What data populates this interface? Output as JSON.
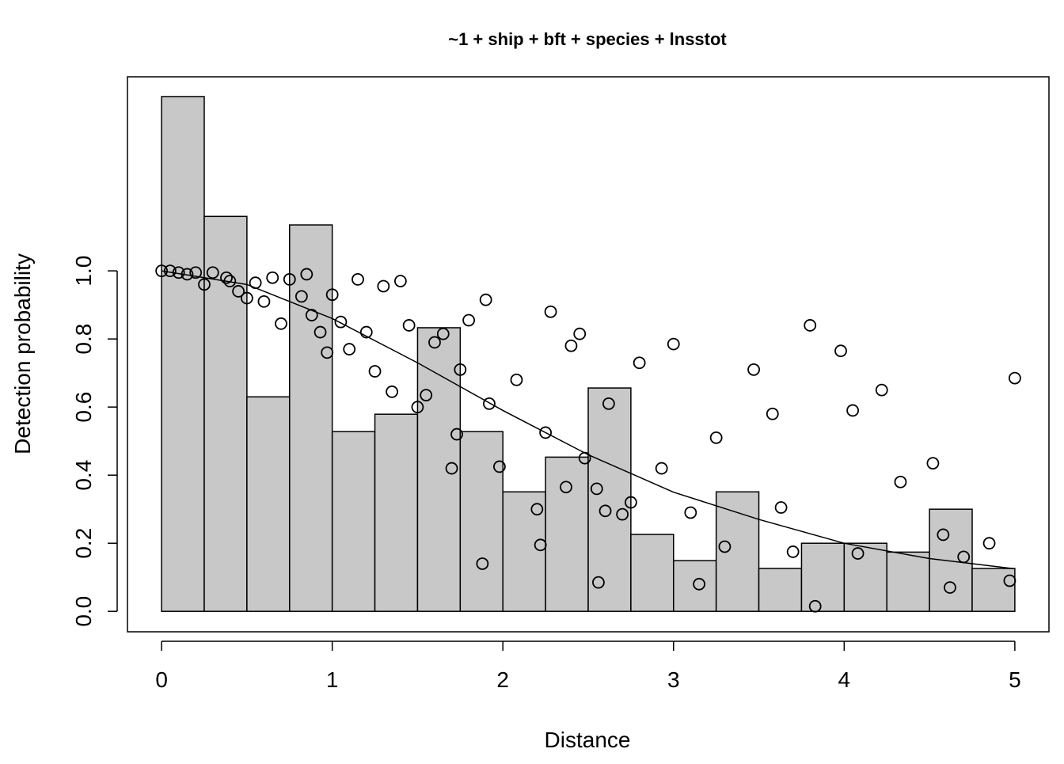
{
  "chart_data": {
    "type": "histogram",
    "title": "~1 + ship + bft + species + lnsstot",
    "xlabel": "Distance",
    "ylabel": "Detection probability",
    "bins": [
      0,
      0.25,
      0.5,
      0.75,
      1,
      1.25,
      1.5,
      1.75,
      2,
      2.25,
      2.5,
      2.75,
      3,
      3.25,
      3.5,
      3.75,
      4,
      4.25,
      4.5,
      4.75,
      5
    ],
    "counts": [
      1.512,
      1.16,
      0.63,
      1.135,
      0.528,
      0.579,
      0.833,
      0.528,
      0.351,
      0.453,
      0.656,
      0.226,
      0.149,
      0.351,
      0.126,
      0.2,
      0.2,
      0.174,
      0.3,
      0.126
    ],
    "color": "#c8c8c8",
    "xlim": [
      -0.2,
      5.2
    ],
    "ylim": [
      -0.06,
      1.57
    ],
    "xticks": [
      0,
      1,
      2,
      3,
      4,
      5
    ],
    "yticks": [
      {
        "value": 0,
        "label": "0.0"
      },
      0.2,
      0.4,
      0.6,
      0.8,
      {
        "value": 1,
        "label": "1.0"
      }
    ],
    "line": {
      "x": [
        0,
        0.5,
        1,
        1.5,
        2,
        2.5,
        3,
        3.5,
        4,
        4.5,
        5
      ],
      "values": [
        1.0,
        0.96,
        0.86,
        0.73,
        0.59,
        0.46,
        0.35,
        0.27,
        0.2,
        0.155,
        0.125
      ]
    },
    "points": {
      "x": [
        0,
        0.05,
        0.1,
        0.15,
        0.2,
        0.25,
        0.3,
        0.38,
        0.4,
        0.45,
        0.5,
        0.55,
        0.6,
        0.65,
        0.7,
        0.75,
        0.82,
        0.85,
        0.88,
        0.93,
        0.97,
        1.0,
        1.05,
        1.1,
        1.15,
        1.2,
        1.25,
        1.3,
        1.35,
        1.4,
        1.45,
        1.5,
        1.55,
        1.6,
        1.65,
        1.7,
        1.73,
        1.75,
        1.8,
        1.88,
        1.9,
        1.92,
        1.98,
        2.08,
        2.2,
        2.22,
        2.25,
        2.28,
        2.37,
        2.4,
        2.45,
        2.48,
        2.55,
        2.56,
        2.6,
        2.62,
        2.7,
        2.75,
        2.8,
        2.93,
        3.0,
        3.1,
        3.15,
        3.25,
        3.3,
        3.47,
        3.58,
        3.63,
        3.7,
        3.8,
        3.83,
        3.98,
        4.05,
        4.08,
        4.22,
        4.33,
        4.52,
        4.58,
        4.62,
        4.7,
        4.85,
        4.97,
        5.0
      ],
      "values": [
        1,
        1,
        0.995,
        0.99,
        0.995,
        0.96,
        0.995,
        0.98,
        0.97,
        0.94,
        0.92,
        0.965,
        0.91,
        0.98,
        0.845,
        0.975,
        0.925,
        0.99,
        0.87,
        0.82,
        0.76,
        0.93,
        0.85,
        0.77,
        0.975,
        0.82,
        0.705,
        0.955,
        0.645,
        0.97,
        0.84,
        0.6,
        0.635,
        0.79,
        0.815,
        0.42,
        0.52,
        0.71,
        0.855,
        0.14,
        0.915,
        0.61,
        0.425,
        0.68,
        0.3,
        0.195,
        0.525,
        0.88,
        0.365,
        0.78,
        0.815,
        0.45,
        0.36,
        0.085,
        0.295,
        0.61,
        0.285,
        0.32,
        0.73,
        0.42,
        0.785,
        0.29,
        0.08,
        0.51,
        0.19,
        0.71,
        0.58,
        0.305,
        0.175,
        0.84,
        0.015,
        0.765,
        0.59,
        0.17,
        0.65,
        0.38,
        0.435,
        0.225,
        0.07,
        0.16,
        0.2,
        0.09,
        0.685
      ]
    }
  }
}
